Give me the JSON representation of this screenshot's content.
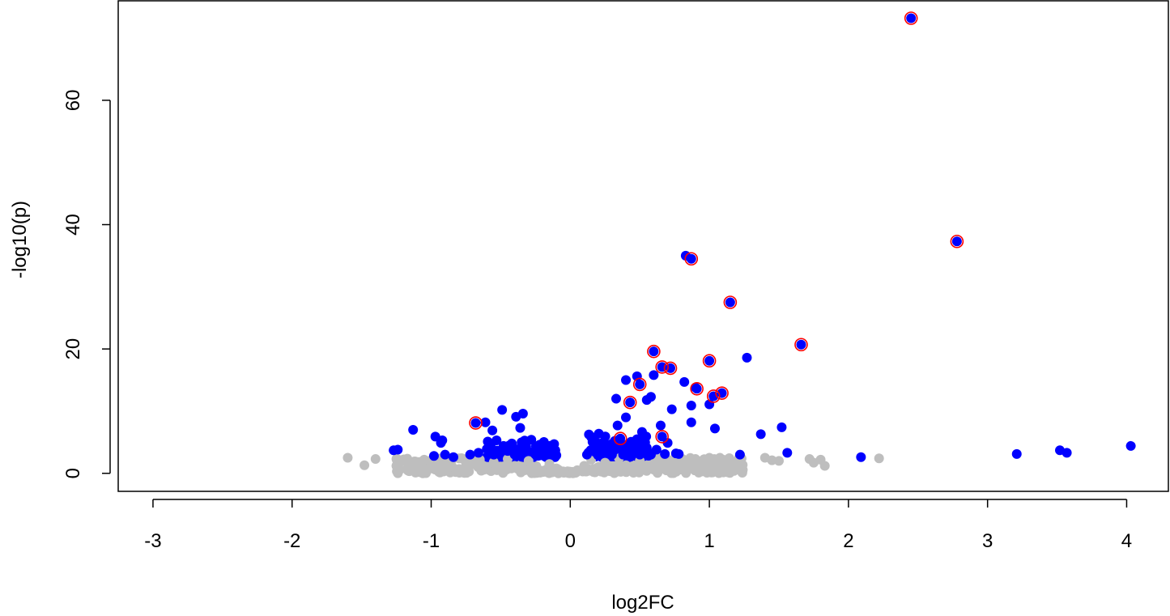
{
  "chart_data": {
    "type": "scatter",
    "title": "",
    "xlabel": "log2FC",
    "ylabel": "-log10(p)",
    "xlim": [
      -3.25,
      4.3
    ],
    "ylim": [
      -2.9,
      76
    ],
    "xticks": [
      "-3",
      "-2",
      "-1",
      "0",
      "1",
      "2",
      "3",
      "4"
    ],
    "yticks": [
      "0",
      "20",
      "40",
      "60"
    ],
    "grid": false,
    "legend": "none",
    "colors": {
      "nonsignificant": "#bebebe",
      "significant": "#0000ff",
      "highlight_ring": "#ff0000"
    },
    "series": [
      {
        "role": "nonsignificant",
        "points": [
          [
            -1.6,
            2.5
          ],
          [
            -1.48,
            1.3
          ],
          [
            -1.4,
            2.3
          ],
          [
            -1.25,
            1.2
          ],
          [
            -1.2,
            2.0
          ],
          [
            -1.15,
            1.0
          ],
          [
            -1.1,
            1.6
          ],
          [
            -1.05,
            2.2
          ],
          [
            -1.0,
            1.4
          ],
          [
            -0.95,
            0.6
          ],
          [
            -0.9,
            1.9
          ],
          [
            -0.85,
            1.1
          ],
          [
            -0.8,
            2.4
          ],
          [
            -0.75,
            0.8
          ],
          [
            -0.7,
            1.7
          ],
          [
            -0.65,
            2.2
          ],
          [
            -0.6,
            1.0
          ],
          [
            -0.55,
            1.8
          ],
          [
            -0.5,
            0.5
          ],
          [
            -0.45,
            2.3
          ],
          [
            -0.4,
            1.2
          ],
          [
            -0.35,
            0.7
          ],
          [
            -0.3,
            2.0
          ],
          [
            -0.25,
            1.0
          ],
          [
            -0.2,
            0.4
          ],
          [
            -0.15,
            1.5
          ],
          [
            -0.1,
            0.8
          ],
          [
            -0.05,
            0.3
          ],
          [
            0.05,
            0.5
          ],
          [
            0.1,
            1.2
          ],
          [
            0.15,
            2.2
          ],
          [
            0.2,
            0.8
          ],
          [
            0.25,
            1.7
          ],
          [
            0.3,
            0.5
          ],
          [
            0.35,
            2.4
          ],
          [
            0.4,
            1.3
          ],
          [
            0.45,
            0.9
          ],
          [
            0.5,
            2.0
          ],
          [
            0.55,
            1.1
          ],
          [
            0.6,
            0.6
          ],
          [
            0.65,
            1.9
          ],
          [
            0.7,
            1.3
          ],
          [
            0.75,
            2.1
          ],
          [
            0.8,
            0.9
          ],
          [
            0.85,
            1.6
          ],
          [
            0.9,
            2.3
          ],
          [
            0.95,
            1.2
          ],
          [
            1.0,
            2.5
          ],
          [
            1.05,
            1.4
          ],
          [
            1.1,
            2.0
          ],
          [
            1.15,
            1.1
          ],
          [
            1.2,
            1.8
          ],
          [
            1.4,
            2.5
          ],
          [
            1.45,
            2.1
          ],
          [
            1.5,
            2.0
          ],
          [
            1.72,
            2.3
          ],
          [
            1.75,
            1.7
          ],
          [
            1.8,
            2.2
          ],
          [
            1.83,
            1.2
          ],
          [
            2.22,
            2.4
          ]
        ]
      },
      {
        "role": "significant",
        "points": [
          [
            2.45,
            73.2
          ],
          [
            2.78,
            37.3
          ],
          [
            0.83,
            35.0
          ],
          [
            0.87,
            34.5
          ],
          [
            1.15,
            27.5
          ],
          [
            1.66,
            20.7
          ],
          [
            0.6,
            19.6
          ],
          [
            1.27,
            18.6
          ],
          [
            1.0,
            18.1
          ],
          [
            0.66,
            17.1
          ],
          [
            0.72,
            16.9
          ],
          [
            0.6,
            15.8
          ],
          [
            0.48,
            15.6
          ],
          [
            0.4,
            15.0
          ],
          [
            0.82,
            14.7
          ],
          [
            0.5,
            14.3
          ],
          [
            0.9,
            13.8
          ],
          [
            0.91,
            13.6
          ],
          [
            1.09,
            12.9
          ],
          [
            1.03,
            12.4
          ],
          [
            0.58,
            12.3
          ],
          [
            0.33,
            12.0
          ],
          [
            0.55,
            11.8
          ],
          [
            0.43,
            11.4
          ],
          [
            1.0,
            11.1
          ],
          [
            0.87,
            10.9
          ],
          [
            0.73,
            10.3
          ],
          [
            -0.49,
            10.2
          ],
          [
            -0.34,
            9.6
          ],
          [
            -0.39,
            9.1
          ],
          [
            0.4,
            9.0
          ],
          [
            -0.68,
            8.1
          ],
          [
            -0.61,
            8.2
          ],
          [
            0.87,
            8.2
          ],
          [
            -0.36,
            7.3
          ],
          [
            0.34,
            7.7
          ],
          [
            0.65,
            7.7
          ],
          [
            1.04,
            7.2
          ],
          [
            -1.13,
            7.0
          ],
          [
            1.52,
            7.4
          ],
          [
            -0.56,
            6.9
          ],
          [
            0.36,
            5.6
          ],
          [
            0.66,
            5.9
          ],
          [
            1.37,
            6.3
          ],
          [
            -0.97,
            5.9
          ],
          [
            -0.92,
            5.3
          ],
          [
            -0.93,
            4.9
          ],
          [
            -0.53,
            5.3
          ],
          [
            -0.48,
            4.4
          ],
          [
            -0.42,
            4.8
          ],
          [
            -0.35,
            5.0
          ],
          [
            -0.28,
            5.4
          ],
          [
            -0.22,
            4.6
          ],
          [
            -0.16,
            4.1
          ],
          [
            -0.12,
            3.5
          ],
          [
            0.18,
            3.4
          ],
          [
            0.22,
            4.8
          ],
          [
            0.28,
            4.0
          ],
          [
            0.32,
            5.2
          ],
          [
            0.42,
            4.3
          ],
          [
            0.46,
            3.6
          ],
          [
            0.55,
            4.1
          ],
          [
            0.62,
            3.8
          ],
          [
            0.7,
            4.9
          ],
          [
            0.76,
            3.2
          ],
          [
            -1.27,
            3.7
          ],
          [
            -1.24,
            3.8
          ],
          [
            -0.98,
            2.8
          ],
          [
            -0.9,
            3.0
          ],
          [
            -0.84,
            2.6
          ],
          [
            -0.72,
            3.0
          ],
          [
            -0.66,
            3.3
          ],
          [
            -0.6,
            3.9
          ],
          [
            -0.55,
            3.0
          ],
          [
            -0.45,
            3.6
          ],
          [
            -0.4,
            3.0
          ],
          [
            -0.32,
            3.8
          ],
          [
            -0.25,
            3.0
          ],
          [
            -0.18,
            3.2
          ],
          [
            -0.1,
            2.9
          ],
          [
            0.12,
            3.0
          ],
          [
            0.2,
            2.9
          ],
          [
            0.25,
            3.6
          ],
          [
            0.3,
            3.0
          ],
          [
            0.38,
            3.0
          ],
          [
            0.5,
            3.0
          ],
          [
            0.58,
            3.0
          ],
          [
            0.68,
            3.1
          ],
          [
            0.78,
            3.1
          ],
          [
            1.22,
            3.0
          ],
          [
            1.56,
            3.3
          ],
          [
            2.09,
            2.6
          ],
          [
            3.21,
            3.1
          ],
          [
            3.52,
            3.7
          ],
          [
            3.57,
            3.3
          ],
          [
            4.03,
            4.4
          ]
        ]
      },
      {
        "role": "highlighted",
        "points": [
          [
            2.45,
            73.2
          ],
          [
            2.78,
            37.3
          ],
          [
            0.87,
            34.5
          ],
          [
            1.15,
            27.5
          ],
          [
            1.66,
            20.7
          ],
          [
            0.6,
            19.6
          ],
          [
            1.0,
            18.1
          ],
          [
            0.66,
            17.1
          ],
          [
            0.72,
            16.9
          ],
          [
            0.5,
            14.3
          ],
          [
            0.91,
            13.6
          ],
          [
            1.09,
            12.9
          ],
          [
            1.03,
            12.4
          ],
          [
            0.43,
            11.4
          ],
          [
            -0.68,
            8.1
          ],
          [
            0.66,
            5.9
          ],
          [
            0.36,
            5.6
          ]
        ]
      }
    ]
  }
}
